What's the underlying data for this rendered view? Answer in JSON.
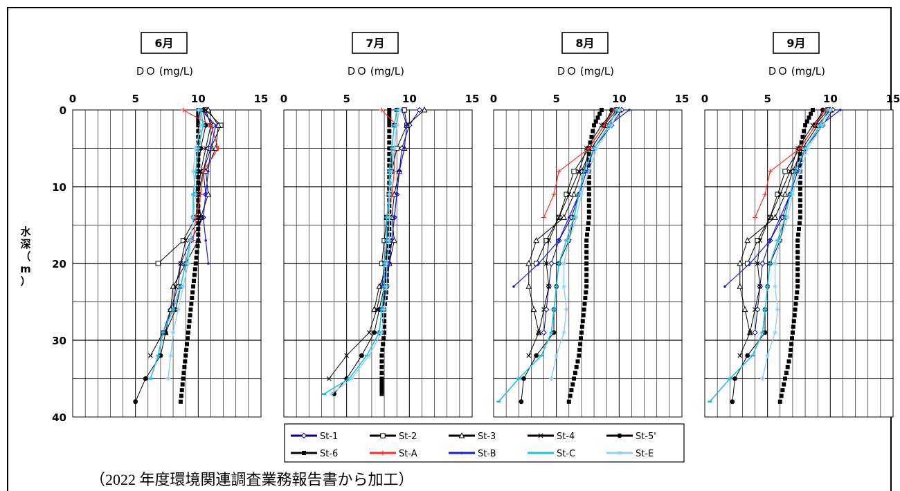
{
  "caption": "（2022 年度環境関連調査業務報告書から加工）",
  "ylabel_chars": [
    "水",
    "深",
    "（",
    "m",
    "）"
  ],
  "colors": {
    "St-1": "#00008b",
    "St-2": "#000000",
    "St-3": "#000000",
    "St-4": "#000000",
    "St-5'": "#000000",
    "St-6": "#000000",
    "St-A": "#ff2a2a",
    "St-B": "#1a1adc",
    "St-C": "#1fbfe6",
    "St-E": "#8fd0f0"
  },
  "chart_data": [
    {
      "type": "line",
      "title": "6月",
      "xlabel": "ＤＯ (mg/L)",
      "ylabel": "水深（m）",
      "xlim": [
        0,
        15
      ],
      "ylim": [
        0,
        40
      ],
      "y_inverted": true,
      "xticks": [
        "0",
        "5",
        "10",
        "15"
      ],
      "yticks": [
        "0",
        "10",
        "20",
        "30",
        "40"
      ],
      "depth": [
        0,
        2,
        5,
        8,
        11,
        14,
        17,
        20,
        23,
        26,
        29,
        32,
        35,
        38
      ],
      "series": [
        {
          "name": "St-1",
          "values": [
            10.4,
            11.2,
            10.8,
            10.4,
            10.6,
            10.4,
            9.4,
            8.6,
            8.4,
            7.8,
            7.2,
            null,
            null,
            null
          ]
        },
        {
          "name": "St-2",
          "values": [
            10.6,
            11.8,
            11.0,
            10.4,
            10.0,
            9.8,
            8.8,
            6.8,
            null,
            null,
            null,
            null,
            null,
            null
          ]
        },
        {
          "name": "St-3",
          "values": [
            10.8,
            11.6,
            11.4,
            10.6,
            10.8,
            10.2,
            10.0,
            9.0,
            8.0,
            7.8,
            7.4,
            null,
            null,
            null
          ]
        },
        {
          "name": "St-4",
          "values": [
            10.6,
            11.0,
            10.6,
            10.2,
            10.0,
            10.2,
            9.0,
            8.6,
            8.2,
            8.0,
            7.2,
            6.2,
            null,
            null
          ]
        },
        {
          "name": "St-5'",
          "values": [
            10.4,
            10.6,
            10.2,
            10.0,
            9.8,
            9.6,
            9.4,
            9.0,
            8.6,
            8.2,
            7.4,
            7.0,
            5.8,
            5.0
          ]
        },
        {
          "name": "St-6",
          "values": [
            10.0,
            10.0,
            10.0,
            10.0,
            10.0,
            10.0,
            10.0,
            9.8,
            9.6,
            9.4,
            9.2,
            9.0,
            8.8,
            8.6
          ]
        },
        {
          "name": "St-A",
          "values": [
            8.8,
            11.0,
            11.6,
            10.4,
            10.2,
            9.8,
            9.6,
            null,
            null,
            null,
            null,
            null,
            null,
            null
          ]
        },
        {
          "name": "St-B",
          "values": [
            10.2,
            11.4,
            11.0,
            10.8,
            10.6,
            10.4,
            10.6,
            10.8,
            null,
            null,
            null,
            null,
            null,
            null
          ]
        },
        {
          "name": "St-C",
          "values": [
            10.2,
            10.4,
            10.0,
            9.8,
            9.6,
            9.6,
            9.4,
            9.0,
            8.6,
            8.0,
            7.2,
            6.8,
            6.2,
            null
          ]
        },
        {
          "name": "St-E",
          "values": [
            10.0,
            10.2,
            9.8,
            9.6,
            9.8,
            9.6,
            9.4,
            9.2,
            8.8,
            8.4,
            8.0,
            7.8,
            7.6,
            null
          ]
        }
      ]
    },
    {
      "type": "line",
      "title": "7月",
      "xlabel": "ＤＯ (mg/L)",
      "ylabel": "水深（m）",
      "xlim": [
        0,
        15
      ],
      "ylim": [
        0,
        40
      ],
      "y_inverted": true,
      "xticks": [
        "0",
        "5",
        "10",
        "15"
      ],
      "yticks": [
        "0",
        "10",
        "20",
        "30",
        "40"
      ],
      "depth": [
        0,
        2,
        5,
        8,
        11,
        14,
        17,
        20,
        23,
        26,
        29,
        32,
        35,
        37
      ],
      "series": [
        {
          "name": "St-1",
          "values": [
            10.8,
            10.0,
            9.4,
            9.2,
            9.0,
            8.8,
            8.6,
            8.4,
            8.2,
            7.8,
            7.6,
            null,
            null,
            null
          ]
        },
        {
          "name": "St-2",
          "values": [
            9.6,
            9.8,
            9.0,
            8.6,
            8.4,
            8.2,
            8.0,
            7.8,
            null,
            null,
            null,
            null,
            null,
            null
          ]
        },
        {
          "name": "St-3",
          "values": [
            11.2,
            9.8,
            9.6,
            9.2,
            8.8,
            8.6,
            8.8,
            8.4,
            7.6,
            7.2,
            null,
            null,
            null,
            null
          ]
        },
        {
          "name": "St-4",
          "values": [
            9.0,
            8.8,
            8.6,
            8.4,
            8.4,
            8.2,
            8.2,
            8.0,
            7.8,
            7.4,
            6.8,
            5.0,
            3.6,
            null
          ]
        },
        {
          "name": "St-5'",
          "values": [
            9.0,
            8.8,
            8.6,
            8.6,
            8.4,
            8.4,
            8.2,
            8.2,
            8.0,
            7.6,
            7.2,
            6.2,
            5.0,
            4.0
          ]
        },
        {
          "name": "St-6",
          "values": [
            8.4,
            8.4,
            8.4,
            8.4,
            8.4,
            8.4,
            8.4,
            8.2,
            8.2,
            8.0,
            8.0,
            7.8,
            7.8,
            7.8
          ]
        },
        {
          "name": "St-A",
          "values": [
            7.8,
            9.0,
            8.8,
            8.8,
            8.6,
            8.2,
            null,
            null,
            null,
            null,
            null,
            null,
            null,
            null
          ]
        },
        {
          "name": "St-B",
          "values": [
            9.4,
            9.8,
            9.6,
            9.2,
            9.0,
            8.8,
            8.6,
            8.4,
            7.8,
            null,
            null,
            null,
            null,
            null
          ]
        },
        {
          "name": "St-C",
          "values": [
            9.0,
            8.8,
            8.6,
            8.4,
            8.4,
            8.2,
            8.2,
            8.0,
            8.0,
            7.8,
            7.6,
            6.6,
            5.2,
            3.2
          ]
        },
        {
          "name": "St-E",
          "values": [
            9.2,
            9.0,
            8.8,
            8.6,
            8.4,
            8.4,
            8.4,
            8.2,
            8.2,
            8.0,
            7.8,
            6.8,
            5.4,
            3.8
          ]
        }
      ]
    },
    {
      "type": "line",
      "title": "8月",
      "xlabel": "ＤＯ (mg/L)",
      "ylabel": "水深（m）",
      "xlim": [
        0,
        15
      ],
      "ylim": [
        0,
        40
      ],
      "y_inverted": true,
      "xticks": [
        "0",
        "5",
        "10",
        "15"
      ],
      "yticks": [
        "0",
        "10",
        "20",
        "30",
        "40"
      ],
      "depth": [
        0,
        2,
        5,
        8,
        11,
        14,
        17,
        20,
        23,
        26,
        29,
        32,
        35,
        38
      ],
      "series": [
        {
          "name": "St-1",
          "values": [
            10.2,
            9.4,
            8.0,
            7.2,
            6.8,
            6.2,
            5.2,
            4.6,
            4.4,
            4.2,
            4.0,
            null,
            null,
            null
          ]
        },
        {
          "name": "St-2",
          "values": [
            9.8,
            8.8,
            7.6,
            6.4,
            5.8,
            5.2,
            4.2,
            3.4,
            null,
            null,
            null,
            null,
            null,
            null
          ]
        },
        {
          "name": "St-3",
          "values": [
            10.0,
            9.0,
            7.8,
            7.0,
            6.4,
            5.6,
            3.4,
            2.8,
            2.8,
            3.2,
            3.6,
            null,
            null,
            null
          ]
        },
        {
          "name": "St-4",
          "values": [
            9.6,
            8.6,
            7.4,
            6.8,
            6.0,
            5.2,
            4.4,
            4.2,
            4.4,
            4.0,
            3.6,
            2.8,
            null,
            null
          ]
        },
        {
          "name": "St-5'",
          "values": [
            9.4,
            8.8,
            7.6,
            7.2,
            6.8,
            6.4,
            6.0,
            5.2,
            5.0,
            4.8,
            4.8,
            3.4,
            2.4,
            2.2
          ]
        },
        {
          "name": "St-6",
          "values": [
            8.6,
            8.0,
            7.6,
            7.6,
            7.6,
            7.6,
            7.4,
            7.4,
            7.4,
            7.2,
            7.0,
            6.8,
            6.4,
            6.0
          ]
        },
        {
          "name": "St-A",
          "values": [
            9.6,
            8.8,
            7.6,
            5.2,
            4.8,
            4.0,
            null,
            null,
            null,
            null,
            null,
            null,
            null,
            null
          ]
        },
        {
          "name": "St-B",
          "values": [
            10.8,
            9.2,
            8.0,
            7.4,
            6.8,
            6.0,
            5.2,
            3.6,
            1.6,
            null,
            null,
            null,
            null,
            null
          ]
        },
        {
          "name": "St-C",
          "values": [
            9.8,
            9.2,
            8.0,
            7.2,
            6.8,
            6.4,
            5.8,
            5.2,
            5.0,
            4.8,
            4.6,
            3.8,
            2.0,
            0.4
          ]
        },
        {
          "name": "St-E",
          "values": [
            10.0,
            9.4,
            8.2,
            7.6,
            7.0,
            6.6,
            6.0,
            5.6,
            5.6,
            5.8,
            5.6,
            5.0,
            4.6,
            null
          ]
        }
      ]
    },
    {
      "type": "line",
      "title": "9月",
      "xlabel": "ＤＯ (mg/L)",
      "ylabel": "水深（m）",
      "xlim": [
        0,
        15
      ],
      "ylim": [
        0,
        40
      ],
      "y_inverted": true,
      "xticks": [
        "0",
        "5",
        "10",
        "15"
      ],
      "yticks": [
        "0",
        "10",
        "20",
        "30",
        "40"
      ],
      "depth": [
        0,
        2,
        5,
        8,
        11,
        14,
        17,
        20,
        23,
        26,
        29,
        32,
        35,
        38
      ],
      "series": [
        {
          "name": "St-1",
          "values": [
            10.2,
            9.4,
            8.0,
            7.2,
            6.8,
            6.2,
            5.2,
            4.6,
            4.4,
            4.2,
            4.0,
            null,
            null,
            null
          ]
        },
        {
          "name": "St-2",
          "values": [
            9.8,
            8.8,
            7.6,
            6.4,
            5.8,
            5.2,
            4.2,
            3.4,
            null,
            null,
            null,
            null,
            null,
            null
          ]
        },
        {
          "name": "St-3",
          "values": [
            10.0,
            9.0,
            7.8,
            7.0,
            6.4,
            5.6,
            3.4,
            2.8,
            2.8,
            3.2,
            3.6,
            null,
            null,
            null
          ]
        },
        {
          "name": "St-4",
          "values": [
            9.6,
            8.6,
            7.4,
            6.8,
            6.0,
            5.2,
            4.4,
            4.2,
            4.4,
            4.0,
            3.6,
            2.8,
            null,
            null
          ]
        },
        {
          "name": "St-5'",
          "values": [
            9.4,
            8.8,
            7.6,
            7.2,
            6.8,
            6.4,
            6.0,
            5.2,
            5.0,
            4.8,
            4.8,
            3.4,
            2.4,
            2.2
          ]
        },
        {
          "name": "St-6",
          "values": [
            8.6,
            8.0,
            7.6,
            7.6,
            7.6,
            7.6,
            7.4,
            7.4,
            7.4,
            7.2,
            7.0,
            6.8,
            6.4,
            6.0
          ]
        },
        {
          "name": "St-A",
          "values": [
            9.6,
            8.8,
            7.6,
            5.2,
            4.8,
            4.0,
            null,
            null,
            null,
            null,
            null,
            null,
            null,
            null
          ]
        },
        {
          "name": "St-B",
          "values": [
            10.8,
            9.2,
            8.0,
            7.4,
            6.8,
            6.0,
            5.2,
            3.6,
            1.6,
            null,
            null,
            null,
            null,
            null
          ]
        },
        {
          "name": "St-C",
          "values": [
            9.8,
            9.2,
            8.0,
            7.2,
            6.8,
            6.4,
            5.8,
            5.2,
            5.0,
            4.8,
            4.6,
            3.8,
            2.0,
            0.4
          ]
        },
        {
          "name": "St-E",
          "values": [
            10.0,
            9.4,
            8.2,
            7.6,
            7.0,
            6.6,
            6.0,
            5.6,
            5.6,
            5.8,
            5.6,
            5.0,
            4.6,
            null
          ]
        }
      ]
    }
  ],
  "legend": {
    "placement": "bottom-center",
    "rows": [
      [
        "St-1",
        "St-2",
        "St-3",
        "St-4",
        "St-5'"
      ],
      [
        "St-6",
        "St-A",
        "St-B",
        "St-C",
        "St-E"
      ]
    ]
  }
}
